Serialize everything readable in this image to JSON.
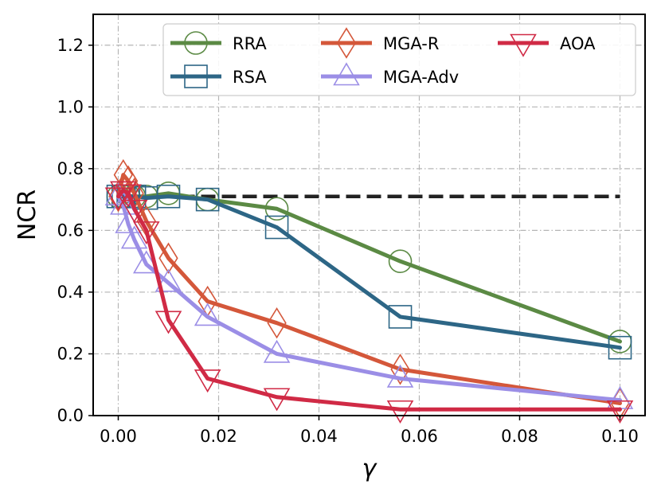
{
  "chart_data": {
    "type": "line",
    "title": "",
    "xlabel": "γ",
    "ylabel": "NCR",
    "xlim": [
      -0.005,
      0.105
    ],
    "ylim": [
      0.0,
      1.3
    ],
    "xticks": [
      0.0,
      0.02,
      0.04,
      0.06,
      0.08,
      0.1
    ],
    "xtick_labels": [
      "0.00",
      "0.02",
      "0.04",
      "0.06",
      "0.08",
      "0.10"
    ],
    "yticks": [
      0.0,
      0.2,
      0.4,
      0.6,
      0.8,
      1.0,
      1.2
    ],
    "ytick_labels": [
      "0.0",
      "0.2",
      "0.4",
      "0.6",
      "0.8",
      "1.0",
      "1.2"
    ],
    "grid": true,
    "legend_position": "top-right",
    "reference_line": {
      "style": "dashed",
      "color": "#222222",
      "x": [
        0.0,
        0.1
      ],
      "y": 0.71
    },
    "series": [
      {
        "name": "RRA",
        "color": "#5b8a44",
        "marker": "circle",
        "x": [
          0.0,
          0.001,
          0.002,
          0.0032,
          0.0056,
          0.01,
          0.0178,
          0.0316,
          0.0562,
          0.1
        ],
        "y": [
          0.71,
          0.71,
          0.712,
          0.71,
          0.71,
          0.72,
          0.7,
          0.67,
          0.5,
          0.24
        ]
      },
      {
        "name": "RSA",
        "color": "#2d6686",
        "marker": "square",
        "x": [
          0.0,
          0.001,
          0.002,
          0.0032,
          0.0056,
          0.01,
          0.0178,
          0.0316,
          0.0562,
          0.1
        ],
        "y": [
          0.71,
          0.71,
          0.71,
          0.71,
          0.705,
          0.71,
          0.7,
          0.61,
          0.32,
          0.22
        ]
      },
      {
        "name": "MGA-R",
        "color": "#d4573a",
        "marker": "diamond",
        "x": [
          0.0,
          0.001,
          0.002,
          0.0032,
          0.0056,
          0.01,
          0.0178,
          0.0316,
          0.0562,
          0.1
        ],
        "y": [
          0.71,
          0.78,
          0.76,
          0.72,
          0.63,
          0.51,
          0.37,
          0.3,
          0.15,
          0.04
        ]
      },
      {
        "name": "MGA-Adv",
        "color": "#9b8ee6",
        "marker": "triangle-up",
        "x": [
          0.0,
          0.001,
          0.002,
          0.0032,
          0.0056,
          0.01,
          0.0178,
          0.0316,
          0.0562,
          0.1
        ],
        "y": [
          0.71,
          0.68,
          0.62,
          0.57,
          0.49,
          0.43,
          0.32,
          0.2,
          0.12,
          0.05
        ]
      },
      {
        "name": "AOA",
        "color": "#d02a45",
        "marker": "triangle-down",
        "x": [
          0.0,
          0.001,
          0.002,
          0.0032,
          0.0056,
          0.01,
          0.0178,
          0.0316,
          0.0562,
          0.1
        ],
        "y": [
          0.71,
          0.73,
          0.72,
          0.67,
          0.6,
          0.31,
          0.12,
          0.06,
          0.02,
          0.02
        ]
      }
    ]
  }
}
